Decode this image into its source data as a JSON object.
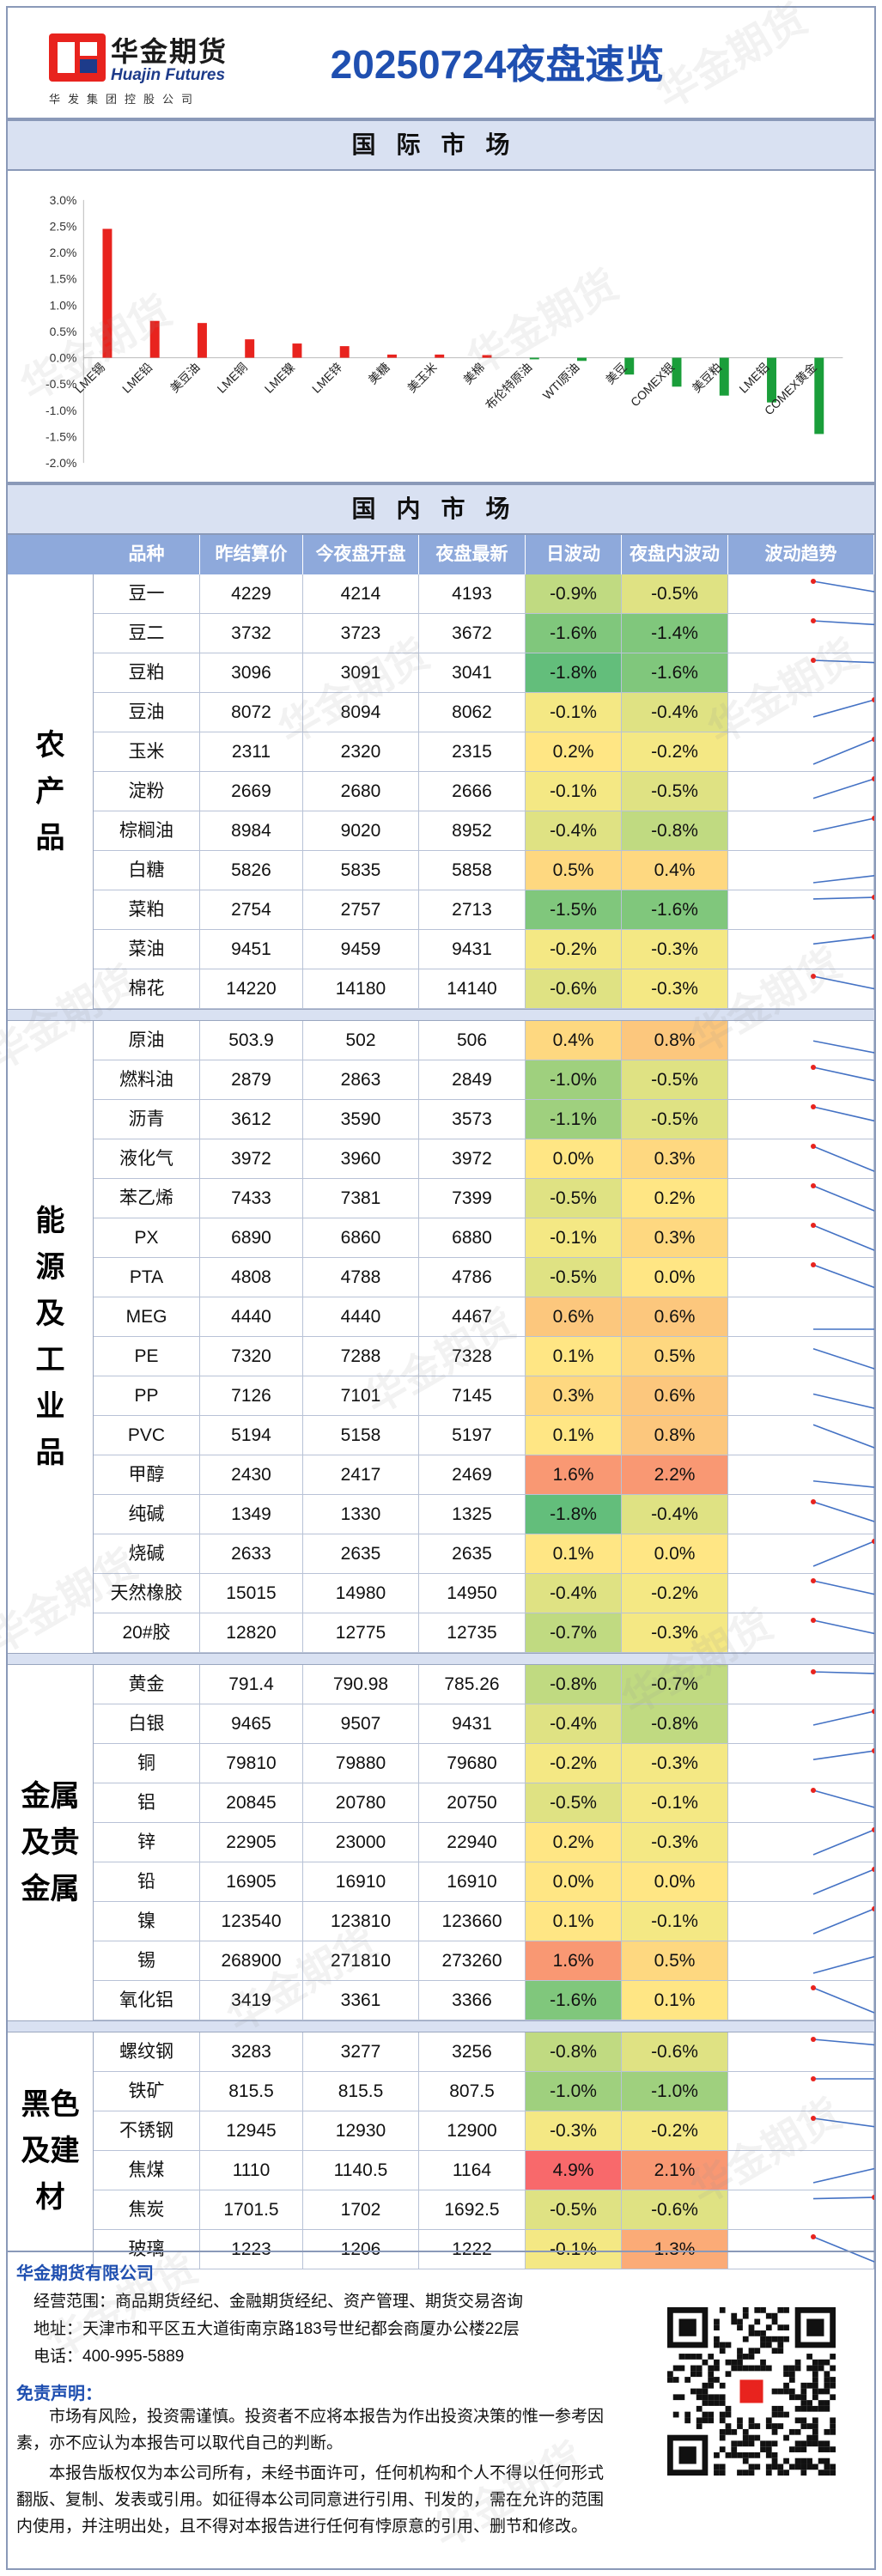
{
  "header": {
    "logo_cn": "华金期货",
    "logo_en": "Huajin Futures",
    "logo_sub": "华发集团控股公司",
    "title": "20250724夜盘速览"
  },
  "intl_section": {
    "title": "国际市场"
  },
  "domestic_section": {
    "title": "国内市场"
  },
  "chart_data": {
    "type": "bar",
    "categories": [
      "LME锡",
      "LME铅",
      "美豆油",
      "LME铜",
      "LME镍",
      "LME锌",
      "美糖",
      "美玉米",
      "美棉",
      "布伦特原油",
      "WTI原油",
      "美豆",
      "COMEX银",
      "美豆粕",
      "LME铝",
      "COMEX黄金"
    ],
    "values": [
      2.45,
      0.7,
      0.66,
      0.35,
      0.27,
      0.22,
      0.06,
      0.06,
      0.05,
      -0.03,
      -0.06,
      -0.32,
      -0.55,
      -0.72,
      -0.85,
      -1.45
    ],
    "ylim": [
      -2.0,
      3.0
    ],
    "yticks": [
      "3.0%",
      "2.5%",
      "2.0%",
      "1.5%",
      "1.0%",
      "0.5%",
      "0.0%",
      "-0.5%",
      "-1.0%",
      "-1.5%",
      "-2.0%"
    ],
    "positive_color": "#e8231e",
    "negative_color": "#1a9e3a"
  },
  "table": {
    "columns": [
      "品种",
      "昨结算价",
      "今夜盘开盘",
      "夜盘最新",
      "日波动",
      "夜盘内波动",
      "波动趋势"
    ],
    "groups": [
      {
        "label": "农产品",
        "rows": [
          {
            "name": "豆一",
            "settle": "4229",
            "open": "4214",
            "last": "4193",
            "day": "-0.9%",
            "night": "-0.5%",
            "trend": [
              4229,
              4214,
              4193
            ]
          },
          {
            "name": "豆二",
            "settle": "3732",
            "open": "3723",
            "last": "3672",
            "day": "-1.6%",
            "night": "-1.4%",
            "trend": [
              3732,
              3723,
              3672
            ]
          },
          {
            "name": "豆粕",
            "settle": "3096",
            "open": "3091",
            "last": "3041",
            "day": "-1.8%",
            "night": "-1.6%",
            "trend": [
              3096,
              3091,
              3041
            ]
          },
          {
            "name": "豆油",
            "settle": "8072",
            "open": "8094",
            "last": "8062",
            "day": "-0.1%",
            "night": "-0.4%",
            "trend": [
              8072,
              8094,
              8062
            ]
          },
          {
            "name": "玉米",
            "settle": "2311",
            "open": "2320",
            "last": "2315",
            "day": "0.2%",
            "night": "-0.2%",
            "trend": [
              2311,
              2320,
              2315
            ]
          },
          {
            "name": "淀粉",
            "settle": "2669",
            "open": "2680",
            "last": "2666",
            "day": "-0.1%",
            "night": "-0.5%",
            "trend": [
              2669,
              2680,
              2666
            ]
          },
          {
            "name": "棕榈油",
            "settle": "8984",
            "open": "9020",
            "last": "8952",
            "day": "-0.4%",
            "night": "-0.8%",
            "trend": [
              8984,
              9020,
              8952
            ]
          },
          {
            "name": "白糖",
            "settle": "5826",
            "open": "5835",
            "last": "5858",
            "day": "0.5%",
            "night": "0.4%",
            "trend": [
              5826,
              5835,
              5858
            ]
          },
          {
            "name": "菜粕",
            "settle": "2754",
            "open": "2757",
            "last": "2713",
            "day": "-1.5%",
            "night": "-1.6%",
            "trend": [
              2754,
              2757,
              2713
            ]
          },
          {
            "name": "菜油",
            "settle": "9451",
            "open": "9459",
            "last": "9431",
            "day": "-0.2%",
            "night": "-0.3%",
            "trend": [
              9451,
              9459,
              9431
            ]
          },
          {
            "name": "棉花",
            "settle": "14220",
            "open": "14180",
            "last": "14140",
            "day": "-0.6%",
            "night": "-0.3%",
            "trend": [
              14220,
              14180,
              14140
            ]
          }
        ]
      },
      {
        "label": "能源及工业品",
        "rows": [
          {
            "name": "原油",
            "settle": "503.9",
            "open": "502",
            "last": "506",
            "day": "0.4%",
            "night": "0.8%",
            "trend": [
              503.9,
              502,
              506
            ]
          },
          {
            "name": "燃料油",
            "settle": "2879",
            "open": "2863",
            "last": "2849",
            "day": "-1.0%",
            "night": "-0.5%",
            "trend": [
              2879,
              2863,
              2849
            ]
          },
          {
            "name": "沥青",
            "settle": "3612",
            "open": "3590",
            "last": "3573",
            "day": "-1.1%",
            "night": "-0.5%",
            "trend": [
              3612,
              3590,
              3573
            ]
          },
          {
            "name": "液化气",
            "settle": "3972",
            "open": "3960",
            "last": "3972",
            "day": "0.0%",
            "night": "0.3%",
            "trend": [
              3972,
              3960,
              3972
            ]
          },
          {
            "name": "苯乙烯",
            "settle": "7433",
            "open": "7381",
            "last": "7399",
            "day": "-0.5%",
            "night": "0.2%",
            "trend": [
              7433,
              7381,
              7399
            ]
          },
          {
            "name": "PX",
            "settle": "6890",
            "open": "6860",
            "last": "6880",
            "day": "-0.1%",
            "night": "0.3%",
            "trend": [
              6890,
              6860,
              6880
            ]
          },
          {
            "name": "PTA",
            "settle": "4808",
            "open": "4788",
            "last": "4786",
            "day": "-0.5%",
            "night": "0.0%",
            "trend": [
              4808,
              4788,
              4786
            ]
          },
          {
            "name": "MEG",
            "settle": "4440",
            "open": "4440",
            "last": "4467",
            "day": "0.6%",
            "night": "0.6%",
            "trend": [
              4440,
              4440,
              4467
            ]
          },
          {
            "name": "PE",
            "settle": "7320",
            "open": "7288",
            "last": "7328",
            "day": "0.1%",
            "night": "0.5%",
            "trend": [
              7320,
              7288,
              7328
            ]
          },
          {
            "name": "PP",
            "settle": "7126",
            "open": "7101",
            "last": "7145",
            "day": "0.3%",
            "night": "0.6%",
            "trend": [
              7126,
              7101,
              7145
            ]
          },
          {
            "name": "PVC",
            "settle": "5194",
            "open": "5158",
            "last": "5197",
            "day": "0.1%",
            "night": "0.8%",
            "trend": [
              5194,
              5158,
              5197
            ]
          },
          {
            "name": "甲醇",
            "settle": "2430",
            "open": "2417",
            "last": "2469",
            "day": "1.6%",
            "night": "2.2%",
            "trend": [
              2430,
              2417,
              2469
            ]
          },
          {
            "name": "纯碱",
            "settle": "1349",
            "open": "1330",
            "last": "1325",
            "day": "-1.8%",
            "night": "-0.4%",
            "trend": [
              1349,
              1330,
              1325
            ]
          },
          {
            "name": "烧碱",
            "settle": "2633",
            "open": "2635",
            "last": "2635",
            "day": "0.1%",
            "night": "0.0%",
            "trend": [
              2633,
              2635,
              2635
            ]
          },
          {
            "name": "天然橡胶",
            "settle": "15015",
            "open": "14980",
            "last": "14950",
            "day": "-0.4%",
            "night": "-0.2%",
            "trend": [
              15015,
              14980,
              14950
            ]
          },
          {
            "name": "20#胶",
            "settle": "12820",
            "open": "12775",
            "last": "12735",
            "day": "-0.7%",
            "night": "-0.3%",
            "trend": [
              12820,
              12775,
              12735
            ]
          }
        ]
      },
      {
        "label": "金属及贵金属",
        "rows": [
          {
            "name": "黄金",
            "settle": "791.4",
            "open": "790.98",
            "last": "785.26",
            "day": "-0.8%",
            "night": "-0.7%",
            "trend": [
              791.4,
              790.98,
              785.26
            ]
          },
          {
            "name": "白银",
            "settle": "9465",
            "open": "9507",
            "last": "9431",
            "day": "-0.4%",
            "night": "-0.8%",
            "trend": [
              9465,
              9507,
              9431
            ]
          },
          {
            "name": "铜",
            "settle": "79810",
            "open": "79880",
            "last": "79680",
            "day": "-0.2%",
            "night": "-0.3%",
            "trend": [
              79810,
              79880,
              79680
            ]
          },
          {
            "name": "铝",
            "settle": "20845",
            "open": "20780",
            "last": "20750",
            "day": "-0.5%",
            "night": "-0.1%",
            "trend": [
              20845,
              20780,
              20750
            ]
          },
          {
            "name": "锌",
            "settle": "22905",
            "open": "23000",
            "last": "22940",
            "day": "0.2%",
            "night": "-0.3%",
            "trend": [
              22905,
              23000,
              22940
            ]
          },
          {
            "name": "铅",
            "settle": "16905",
            "open": "16910",
            "last": "16910",
            "day": "0.0%",
            "night": "0.0%",
            "trend": [
              16905,
              16910,
              16910
            ]
          },
          {
            "name": "镍",
            "settle": "123540",
            "open": "123810",
            "last": "123660",
            "day": "0.1%",
            "night": "-0.1%",
            "trend": [
              123540,
              123810,
              123660
            ]
          },
          {
            "name": "锡",
            "settle": "268900",
            "open": "271810",
            "last": "273260",
            "day": "1.6%",
            "night": "0.5%",
            "trend": [
              268900,
              271810,
              273260
            ]
          },
          {
            "name": "氧化铝",
            "settle": "3419",
            "open": "3361",
            "last": "3366",
            "day": "-1.6%",
            "night": "0.1%",
            "trend": [
              3419,
              3361,
              3366
            ]
          }
        ]
      },
      {
        "label": "黑色及建材",
        "rows": [
          {
            "name": "螺纹钢",
            "settle": "3283",
            "open": "3277",
            "last": "3256",
            "day": "-0.8%",
            "night": "-0.6%",
            "trend": [
              3283,
              3277,
              3256
            ]
          },
          {
            "name": "铁矿",
            "settle": "815.5",
            "open": "815.5",
            "last": "807.5",
            "day": "-1.0%",
            "night": "-1.0%",
            "trend": [
              815.5,
              815.5,
              807.5
            ]
          },
          {
            "name": "不锈钢",
            "settle": "12945",
            "open": "12930",
            "last": "12900",
            "day": "-0.3%",
            "night": "-0.2%",
            "trend": [
              12945,
              12930,
              12900
            ]
          },
          {
            "name": "焦煤",
            "settle": "1110",
            "open": "1140.5",
            "last": "1164",
            "day": "4.9%",
            "night": "2.1%",
            "trend": [
              1110,
              1140.5,
              1164
            ]
          },
          {
            "name": "焦炭",
            "settle": "1701.5",
            "open": "1702",
            "last": "1692.5",
            "day": "-0.5%",
            "night": "-0.6%",
            "trend": [
              1701.5,
              1702,
              1692.5
            ]
          },
          {
            "name": "玻璃",
            "settle": "1223",
            "open": "1206",
            "last": "1222",
            "day": "-0.1%",
            "night": "1.3%",
            "trend": [
              1223,
              1206,
              1222
            ]
          }
        ]
      }
    ]
  },
  "footer": {
    "company": "华金期货有限公司",
    "scope": "经营范围：商品期货经纪、金融期货经纪、资产管理、期货交易咨询",
    "address": "地址：天津市和平区五大道街南京路183号世纪都会商厦办公楼22层",
    "phone": "电话：400-995-5889",
    "disclaimer_title": "免责声明：",
    "disclaimer_1": "　　市场有风险，投资需谨慎。投资者不应将本报告为作出投资决策的惟一参考因素，亦不应认为本报告可以取代自己的判断。",
    "disclaimer_2": "　　本报告版权仅为本公司所有，未经书面许可，任何机构和个人不得以任何形式翻版、复制、发表或引用。如征得本公司同意进行引用、刊发的，需在允许的范围内使用，并注明出处，且不得对本报告进行任何有悖原意的引用、删节和修改。"
  },
  "watermark_text": "华金期货",
  "colors": {
    "brand_blue": "#1f4fb0",
    "header_fill": "#8ea9db",
    "section_fill": "#d9e1f2",
    "logo_red": "#e8231e"
  }
}
